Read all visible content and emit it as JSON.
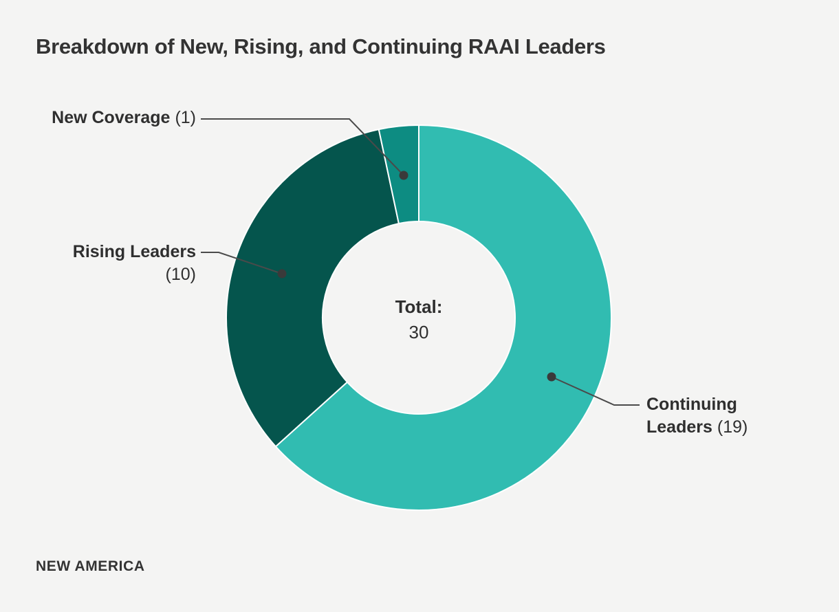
{
  "page": {
    "background_color": "#F4F4F3",
    "title": "Breakdown of New, Rising, and Continuing RAAI Leaders",
    "brand": "NEW AMERICA"
  },
  "colors": {
    "continuing_leaders": "#31BCB1",
    "rising_leaders": "#05554D",
    "new_coverage": "#0D8C82",
    "slice_separator": "#FFFFFF",
    "leader_line": "#4A4A4A",
    "leader_dot": "#3A3A3A",
    "text": "#333333"
  },
  "chart_data": {
    "type": "pie",
    "subtype": "donut",
    "title": "Breakdown of New, Rising, and Continuing RAAI Leaders",
    "direction": "clockwise",
    "start_angle_deg": 0,
    "inner_radius_ratio": 0.5,
    "total": 30,
    "series": [
      {
        "label": "Continuing Leaders",
        "value": 19,
        "color": "#31BCB1"
      },
      {
        "label": "Rising Leaders",
        "value": 10,
        "color": "#05554D"
      },
      {
        "label": "New Coverage",
        "value": 1,
        "color": "#0D8C82"
      }
    ],
    "center_annotation": {
      "label": "Total:",
      "value": "30"
    },
    "legend_position": "callout-labels"
  },
  "callouts": {
    "new_coverage": {
      "name": "New Coverage",
      "count": "(1)"
    },
    "rising_leaders": {
      "name": "Rising Leaders",
      "count": "(10)"
    },
    "continuing_leaders": {
      "name_line1": "Continuing",
      "name_line2": "Leaders",
      "count": "(19)"
    }
  },
  "center": {
    "label": "Total:",
    "value": "30"
  }
}
